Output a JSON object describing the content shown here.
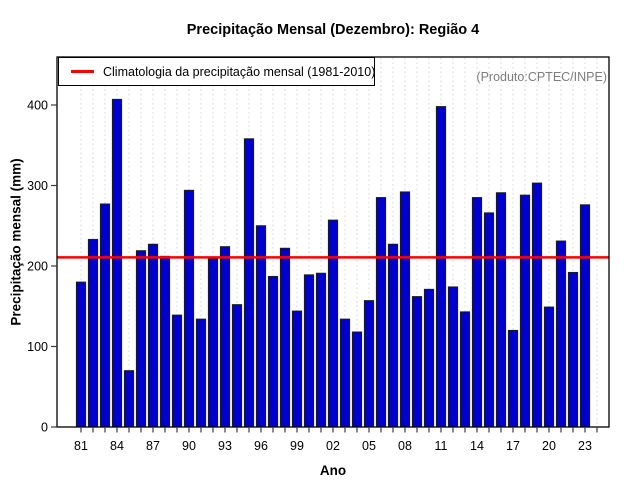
{
  "chart_data": {
    "type": "bar",
    "title": "Precipitação Mensal (Dezembro): Região 4",
    "xlabel": "Ano",
    "ylabel": "Precipitação mensal (mm)",
    "source_note": "(Produto:CPTEC/INPE)",
    "legend": {
      "label": "Climatologia da precipitação mensal (1981-2010)",
      "line_color": "#ff0000",
      "position": "top-left"
    },
    "grid": "vertical-dotted",
    "ylim": [
      0,
      460
    ],
    "yticks": [
      0,
      100,
      200,
      300,
      400
    ],
    "xtick_labels": [
      "81",
      "84",
      "87",
      "90",
      "93",
      "96",
      "99",
      "02",
      "05",
      "08",
      "11",
      "14",
      "17",
      "20",
      "23"
    ],
    "xtick_label_step_years": 3,
    "years": [
      1981,
      1982,
      1983,
      1984,
      1985,
      1986,
      1987,
      1988,
      1989,
      1990,
      1991,
      1992,
      1993,
      1994,
      1995,
      1996,
      1997,
      1998,
      1999,
      2000,
      2001,
      2002,
      2003,
      2004,
      2005,
      2006,
      2007,
      2008,
      2009,
      2010,
      2011,
      2012,
      2013,
      2014,
      2015,
      2016,
      2017,
      2018,
      2019,
      2020,
      2021,
      2022,
      2023
    ],
    "values": [
      180,
      233,
      277,
      407,
      70,
      219,
      227,
      212,
      139,
      294,
      134,
      209,
      224,
      152,
      358,
      250,
      187,
      222,
      144,
      189,
      191,
      257,
      134,
      118,
      157,
      285,
      227,
      292,
      162,
      171,
      398,
      174,
      143,
      285,
      266,
      291,
      120,
      288,
      303,
      149,
      231,
      192,
      276
    ],
    "climatology_value": 210.7,
    "colors": {
      "bar_fill": "#0000cd",
      "bar_border": "#1c1c1c",
      "climatology_line": "#ff0000",
      "grid_line": "#d4d4d4",
      "axis": "#000000",
      "tick": "#3a3a3a",
      "source_note_text": "#7d7d7d"
    }
  }
}
